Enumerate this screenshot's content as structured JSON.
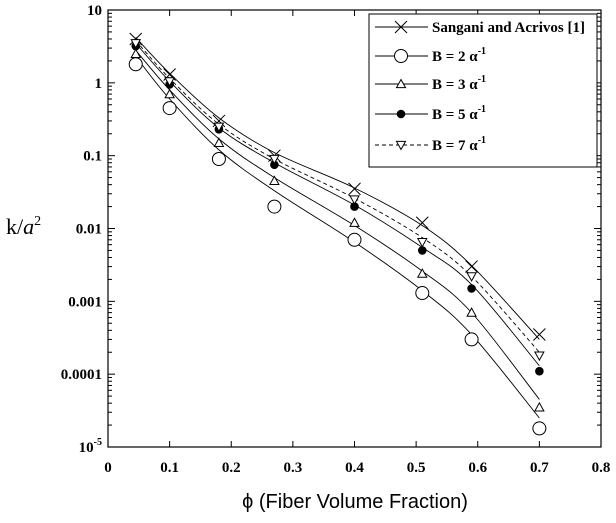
{
  "chart_data": {
    "type": "line",
    "xlabel": "ϕ (Fiber Volume Fraction)",
    "ylabel_base": "k/",
    "ylabel_var": "a",
    "ylabel_exp": "2",
    "xlim": [
      0,
      0.8
    ],
    "ylim": [
      1e-05,
      10
    ],
    "yscale": "log",
    "x_ticks": [
      0,
      0.1,
      0.2,
      0.3,
      0.4,
      0.5,
      0.6,
      0.7,
      0.8
    ],
    "x_tick_labels": [
      "0",
      "0.1",
      "0.2",
      "0.3",
      "0.4",
      "0.5",
      "0.6",
      "0.7",
      "0.8"
    ],
    "y_tick_labels": [
      {
        "value": 10,
        "base": "10",
        "exp": ""
      },
      {
        "value": 1,
        "base": "1",
        "exp": ""
      },
      {
        "value": 0.1,
        "base": "0.1",
        "exp": ""
      },
      {
        "value": 0.01,
        "base": "0.01",
        "exp": ""
      },
      {
        "value": 0.001,
        "base": "0.001",
        "exp": ""
      },
      {
        "value": 0.0001,
        "base": "0.0001",
        "exp": ""
      },
      {
        "value": 1e-05,
        "base": "10",
        "exp": "-5"
      }
    ],
    "legend_position": "top-right",
    "series": [
      {
        "name": "Sangani and Acrivos [1]",
        "legend": {
          "text": "Sangani and Acrivos [1]",
          "sup": ""
        },
        "marker": "x",
        "line": "solid",
        "x": [
          0.045,
          0.1,
          0.18,
          0.27,
          0.4,
          0.51,
          0.59,
          0.7
        ],
        "y": [
          4.0,
          1.3,
          0.3,
          0.1,
          0.035,
          0.012,
          0.003,
          0.00035
        ],
        "curve_y": [
          4.2,
          1.35,
          0.33,
          0.11,
          0.036,
          0.011,
          0.0031,
          0.0003
        ]
      },
      {
        "name": "B = 2 α-1",
        "legend": {
          "text": "B = 2 α",
          "sup": "-1"
        },
        "marker": "circle-open",
        "line": "solid",
        "x": [
          0.045,
          0.1,
          0.18,
          0.27,
          0.4,
          0.51,
          0.59,
          0.7
        ],
        "y": [
          1.8,
          0.45,
          0.09,
          0.02,
          0.007,
          0.0013,
          0.0003,
          1.8e-05
        ],
        "curve_y": [
          2.3,
          0.6,
          0.12,
          0.033,
          0.0065,
          0.0014,
          0.00035,
          2.5e-05
        ]
      },
      {
        "name": "B = 3 α-1",
        "legend": {
          "text": "B = 3 α",
          "sup": "-1"
        },
        "marker": "triangle-up-open",
        "line": "solid",
        "x": [
          0.045,
          0.1,
          0.18,
          0.27,
          0.4,
          0.51,
          0.59,
          0.7
        ],
        "y": [
          2.5,
          0.7,
          0.15,
          0.045,
          0.012,
          0.0024,
          0.0007,
          3.5e-05
        ],
        "curve_y": [
          2.8,
          0.8,
          0.17,
          0.05,
          0.011,
          0.0026,
          0.0007,
          4.5e-05
        ]
      },
      {
        "name": "B = 5 α-1",
        "legend": {
          "text": "B = 5 α",
          "sup": "-1"
        },
        "marker": "circle-filled",
        "line": "solid",
        "x": [
          0.045,
          0.1,
          0.18,
          0.27,
          0.4,
          0.51,
          0.59,
          0.7
        ],
        "y": [
          3.2,
          0.95,
          0.23,
          0.075,
          0.02,
          0.005,
          0.0015,
          0.00011
        ],
        "curve_y": [
          3.5,
          1.05,
          0.24,
          0.08,
          0.021,
          0.0055,
          0.0017,
          0.00013
        ]
      },
      {
        "name": "B = 7 α-1",
        "legend": {
          "text": "B = 7 α",
          "sup": "-1"
        },
        "marker": "triangle-down-open",
        "line": "dashed",
        "x": [
          0.045,
          0.1,
          0.18,
          0.27,
          0.4,
          0.51,
          0.59,
          0.7
        ],
        "y": [
          3.5,
          1.05,
          0.25,
          0.09,
          0.025,
          0.0065,
          0.0022,
          0.00018
        ],
        "curve_y": [
          3.8,
          1.15,
          0.27,
          0.09,
          0.026,
          0.0075,
          0.0022,
          0.0002
        ]
      }
    ]
  }
}
